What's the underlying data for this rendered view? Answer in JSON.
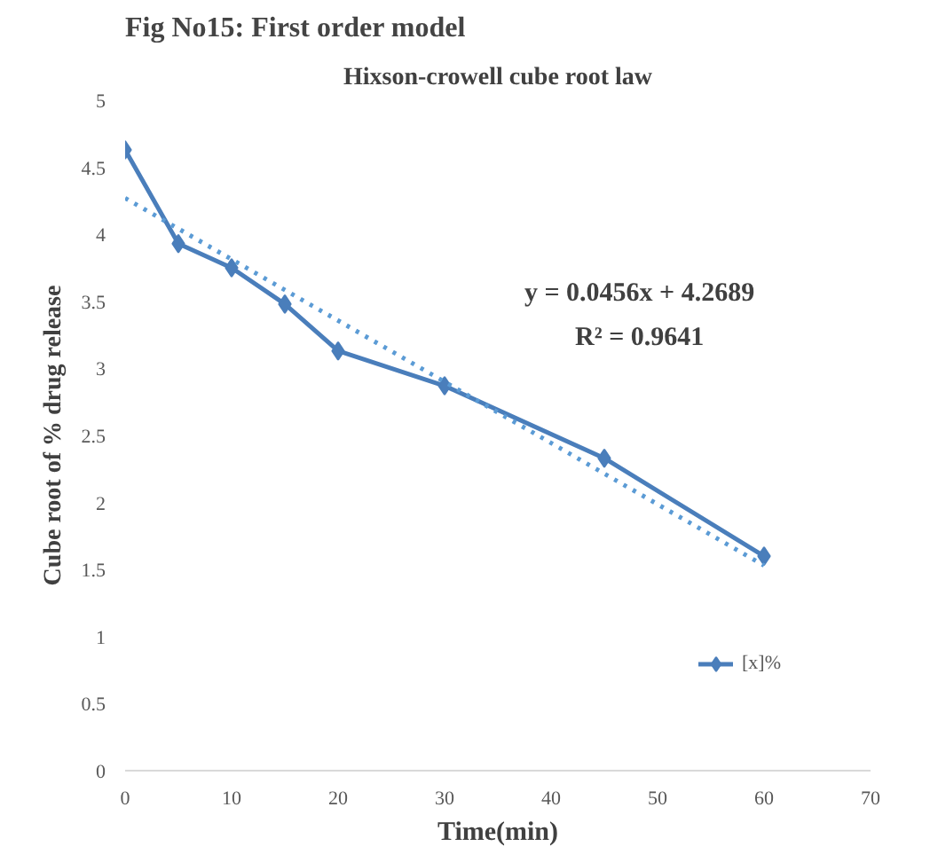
{
  "chart_data": {
    "type": "line",
    "title": "Hixson-crowell cube root law",
    "xlabel": "Time(min)",
    "ylabel": "Cube root of % drug release",
    "annotations": [
      "Fig No15: First order model",
      "y = 0.0456x + 4.2689",
      "R² = 0.9641"
    ],
    "series": [
      {
        "name": "[x]%",
        "color": "#4a7ebb",
        "x": [
          0,
          5,
          10,
          15,
          20,
          30,
          45,
          60
        ],
        "values": [
          4.63,
          3.93,
          3.75,
          3.48,
          3.13,
          2.87,
          2.33,
          1.6
        ],
        "marker": "diamond",
        "line_style": "solid"
      },
      {
        "type": "line",
        "color": "#5b9bd5",
        "x": [
          0,
          60
        ],
        "values": [
          4.27,
          1.53
        ],
        "marker": "none",
        "line_style": "dotted"
      }
    ],
    "xlim": [
      0,
      70
    ],
    "xticks": [
      0,
      10,
      20,
      30,
      40,
      50,
      60,
      70
    ],
    "ylim": [
      0,
      5
    ],
    "yticks": [
      0,
      0.5,
      1,
      1.5,
      2,
      2.5,
      3,
      3.5,
      4,
      4.5,
      5
    ],
    "grid": false,
    "legend": "right"
  }
}
